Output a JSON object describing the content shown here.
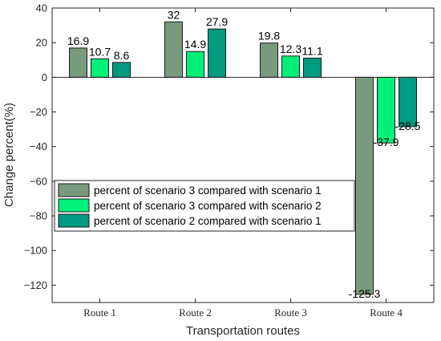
{
  "chart_data": {
    "type": "bar",
    "xlabel": "Transportation routes",
    "ylabel": "Change percent(%)",
    "categories": [
      "Route 1",
      "Route 2",
      "Route 3",
      "Route 4"
    ],
    "ylim": [
      -130,
      40
    ],
    "yticks": [
      40,
      20,
      0,
      -20,
      -40,
      -60,
      -80,
      -100,
      -120
    ],
    "ytick_labels": [
      "40",
      "20",
      "0",
      "−20",
      "−40",
      "−60",
      "−80",
      "−100",
      "−120"
    ],
    "grid": false,
    "legend_position": "middle-left",
    "series": [
      {
        "name": "percent of scenario 3 compared with scenario 1",
        "color": "#7a9a7e",
        "values": [
          16.9,
          32,
          19.8,
          -125.3
        ],
        "labels": [
          "16.9",
          "32",
          "19.8",
          "-125.3"
        ]
      },
      {
        "name": "percent of scenario 3 compared with scenario 2",
        "color": "#00f07a",
        "values": [
          10.7,
          14.9,
          12.3,
          -37.9
        ],
        "labels": [
          "10.7",
          "14.9",
          "12.3",
          "-37.9"
        ]
      },
      {
        "name": "percent of scenario 2 compared with scenario 1",
        "color": "#009a80",
        "values": [
          8.6,
          27.9,
          11.1,
          -28.5
        ],
        "labels": [
          "8.6",
          "27.9",
          "11.1",
          "-28.5"
        ]
      }
    ]
  }
}
